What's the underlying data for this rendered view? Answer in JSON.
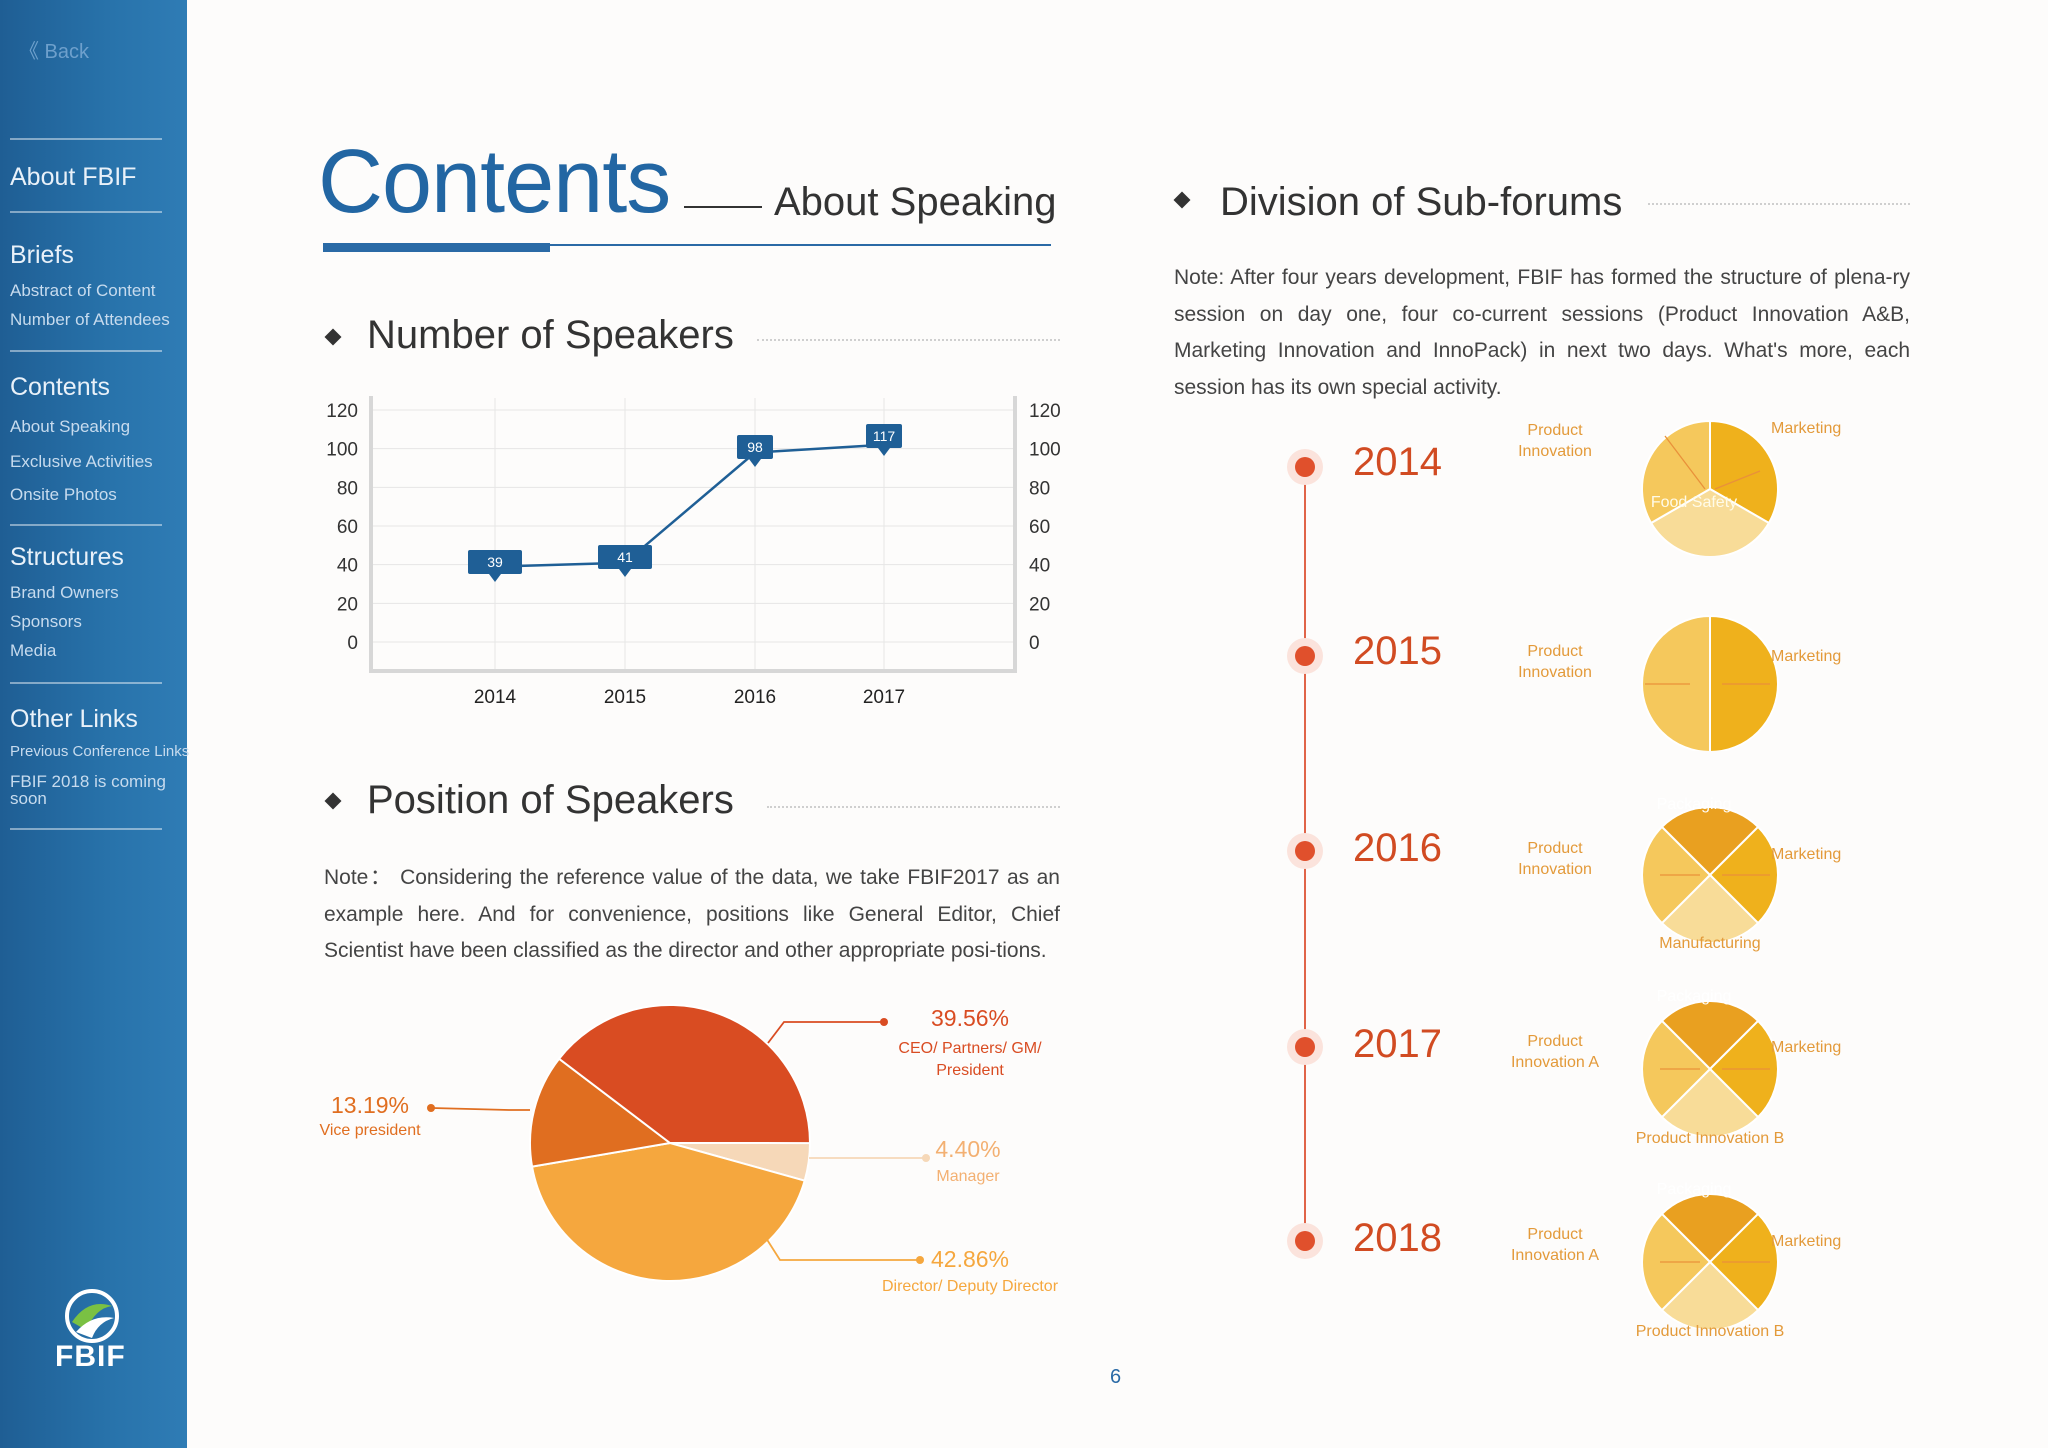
{
  "sidebar": {
    "back": "《 Back",
    "sections": [
      {
        "title": "About FBIF",
        "items": []
      },
      {
        "title": "Briefs",
        "items": [
          "Abstract of Content",
          "Number of Attendees"
        ]
      },
      {
        "title": "Contents",
        "items": [
          "About Speaking",
          "Exclusive Activities",
          "Onsite Photos"
        ]
      },
      {
        "title": "Structures",
        "items": [
          "Brand Owners",
          "Sponsors",
          "Media"
        ]
      },
      {
        "title": "Other Links",
        "items": [
          "Previous Conference Links",
          "FBIF 2018 is coming soon"
        ]
      }
    ],
    "logo_text": "FBIF"
  },
  "header": {
    "title": "Contents",
    "subtitle": "About Speaking"
  },
  "speakers_section": {
    "title": "Number of Speakers"
  },
  "position_section": {
    "title": "Position of Speakers",
    "note": "Note： Considering the reference value of the data, we take FBIF2017 as an example here. And for convenience, positions like General Editor, Chief Scientist have been classified as the director and other appropriate posi-tions."
  },
  "subforums_section": {
    "title": "Division of Sub-forums",
    "note": "Note: After four years development, FBIF has formed the structure of plena-ry session on day one, four co-current sessions (Product Innovation A&B, Marketing Innovation and InnoPack) in next two days. What's more, each session has its own special activity."
  },
  "chart_data": [
    {
      "type": "line",
      "title": "Number of Speakers",
      "x": [
        "2014",
        "2015",
        "2016",
        "2017"
      ],
      "values": [
        39,
        41,
        98,
        117
      ],
      "ylim": [
        0,
        120
      ],
      "yticks": [
        0,
        20,
        40,
        60,
        80,
        100,
        120
      ],
      "grid": true,
      "color": "#1f5f96"
    },
    {
      "type": "pie",
      "title": "Position of Speakers",
      "slices": [
        {
          "label": "CEO/ Partners/ GM/ President",
          "pct": "39.56%",
          "value": 39.56,
          "color": "#d94c22"
        },
        {
          "label": "Manager",
          "pct": "4.40%",
          "value": 4.4,
          "color": "#f6d8b8"
        },
        {
          "label": "Director/ Deputy Director",
          "pct": "42.86%",
          "value": 42.86,
          "color": "#f5a73e"
        },
        {
          "label": "Vice president",
          "pct": "13.19%",
          "value": 13.19,
          "color": "#e06e20"
        }
      ]
    }
  ],
  "timeline": [
    {
      "year": "2014",
      "left": "Product Innovation",
      "right": "Marketing",
      "inner": "Food Safety",
      "bottom": ""
    },
    {
      "year": "2015",
      "left": "Product Innovation",
      "right": "Marketing",
      "inner": "",
      "bottom": ""
    },
    {
      "year": "2016",
      "left": "Product Innovation",
      "right": "Marketing",
      "inner": "Packaging",
      "bottom": "Manufacturing"
    },
    {
      "year": "2017",
      "left": "Product Innovation A",
      "right": "Marketing",
      "inner": "Packaging",
      "bottom": "Product Innovation B"
    },
    {
      "year": "2018",
      "left": "Product Innovation A",
      "right": "Marketing",
      "inner": "Packaging",
      "bottom": "Product Innovation B"
    }
  ],
  "page_number": "6"
}
